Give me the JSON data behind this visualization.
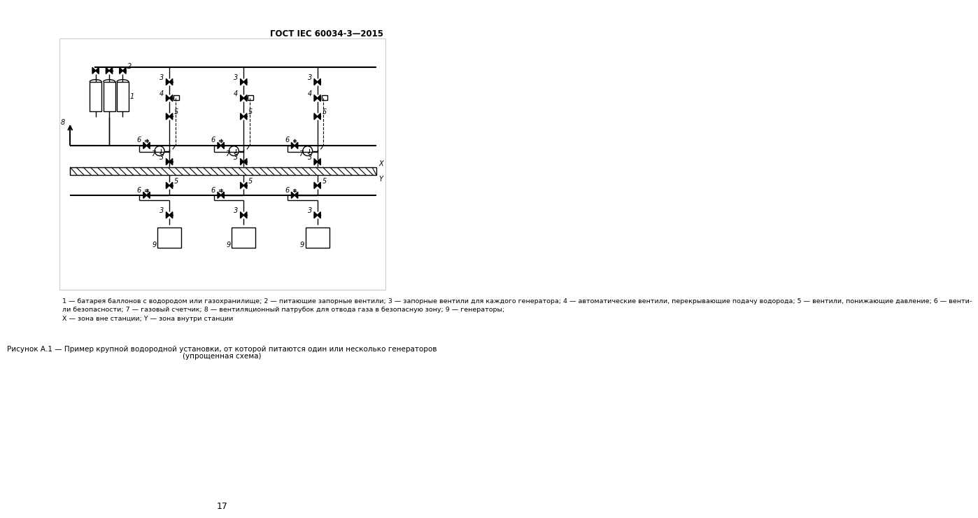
{
  "title": "ГОСТ IEC 60034-3—2015",
  "page_number": "17",
  "bg_color": "#ffffff",
  "line_color": "#000000",
  "caption1": "Рисунок А.1 — Пример крупной водородной установки, от которой питаются один или несколько генераторов",
  "caption2": "(упрощенная схема)",
  "legend_text": "1 — батарея баллонов с водородом или газохранилище; 2 — питающие запорные вентили; 3 — запорные вентили для каждого генератора; 4 — автоматические вентили, перекрывающие подачу водорода; 5 — вентили, понижающие давление; 6 — венти-\nли безопасности; 7 — газовый счетчик; 8 — вентиляционный патрубок для отвода газа в безопасную зону; 9 — генераторы;\nХ — зона вне станции; Y — зона внутри станции"
}
